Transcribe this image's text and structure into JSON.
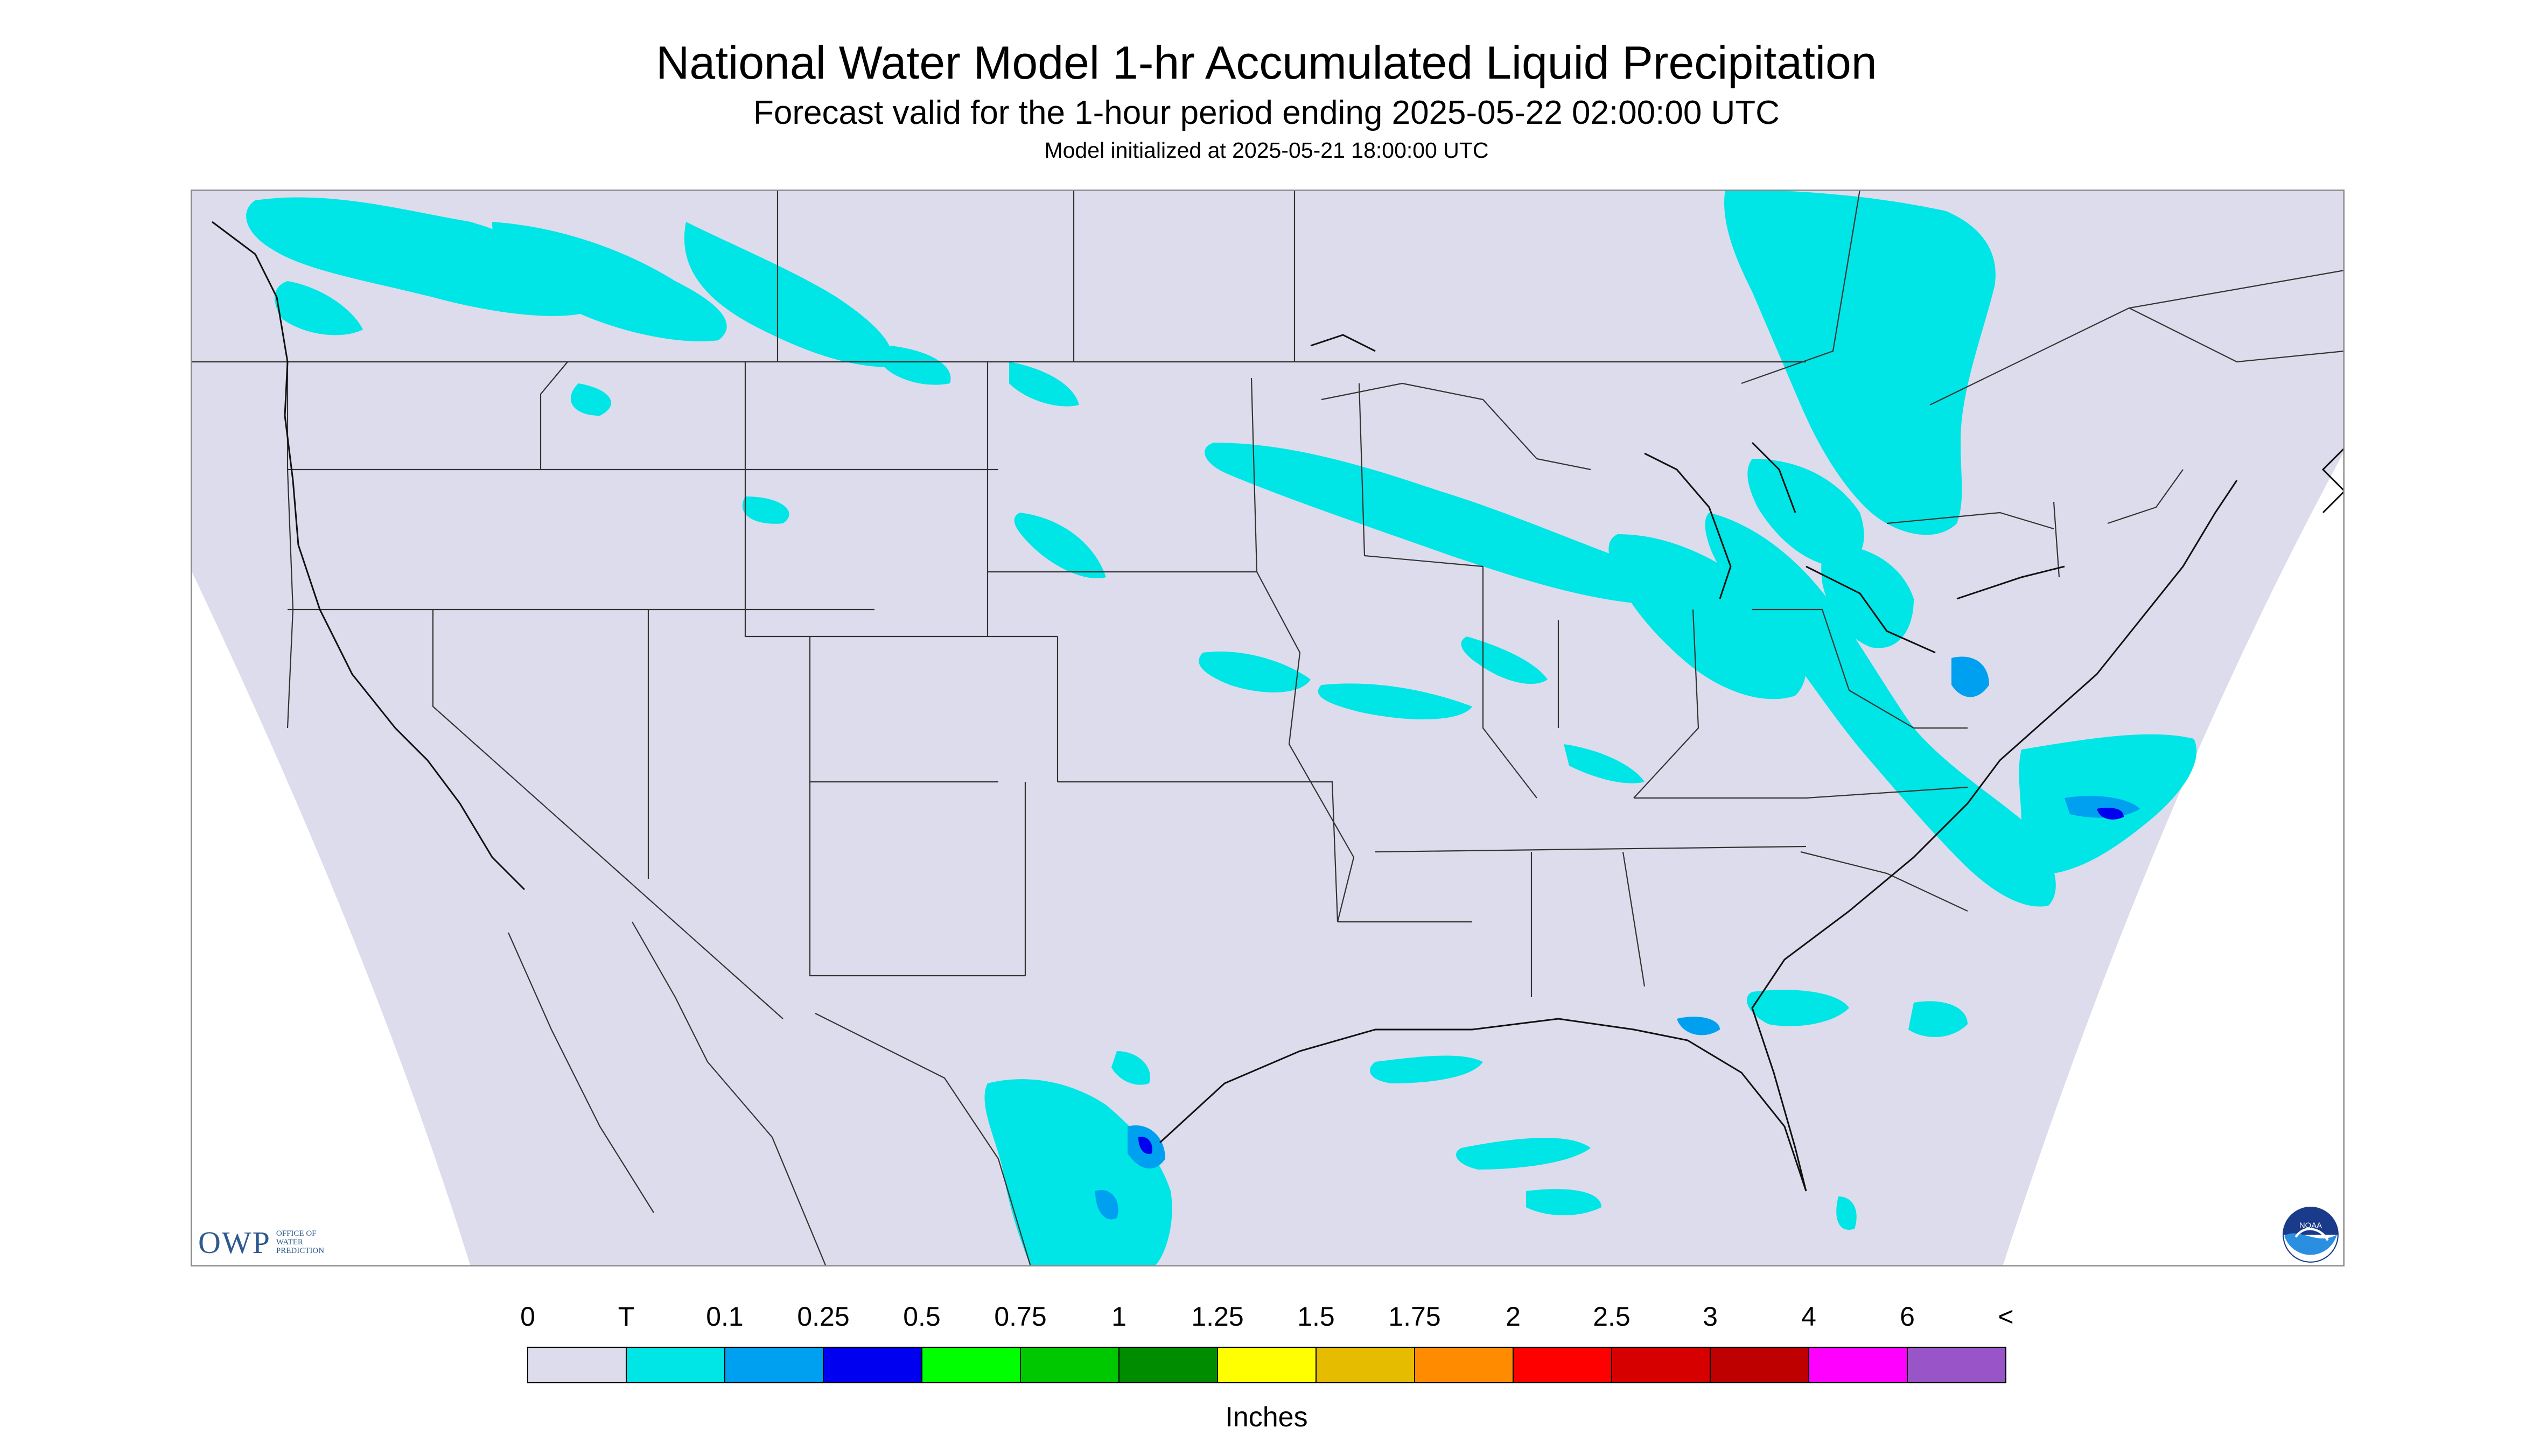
{
  "title": "National Water Model 1-hr Accumulated Liquid Precipitation",
  "subtitle": "Forecast valid for the 1-hour period ending 2025-05-22 02:00:00 UTC",
  "init_line": "Model initialized at 2025-05-21 18:00:00 UTC",
  "legend": {
    "units_label": "Inches",
    "ticks": [
      "0",
      "T",
      "0.1",
      "0.25",
      "0.5",
      "0.75",
      "1",
      "1.25",
      "1.5",
      "1.75",
      "2",
      "2.5",
      "3",
      "4",
      "6",
      "<"
    ],
    "colors": [
      "#dcdcec",
      "#00e5e5",
      "#00a0f0",
      "#0000f0",
      "#00ff00",
      "#00c800",
      "#008c00",
      "#ffff00",
      "#e6bc00",
      "#ff8c00",
      "#ff0000",
      "#d70000",
      "#be0000",
      "#ff00ff",
      "#9955c8"
    ]
  },
  "map": {
    "background_color": "#dcdcec",
    "outside_color": "#ffffff",
    "border_color": "#333333",
    "precip_colors": {
      "trace": "#00e5e5",
      "light": "#00a0f0",
      "moderate": "#0000f0"
    }
  },
  "logos": {
    "owp_wordmark": "OWP",
    "owp_subtext_lines": [
      "OFFICE OF",
      "WATER",
      "PREDICTION"
    ],
    "noaa_text": "NOAA"
  }
}
